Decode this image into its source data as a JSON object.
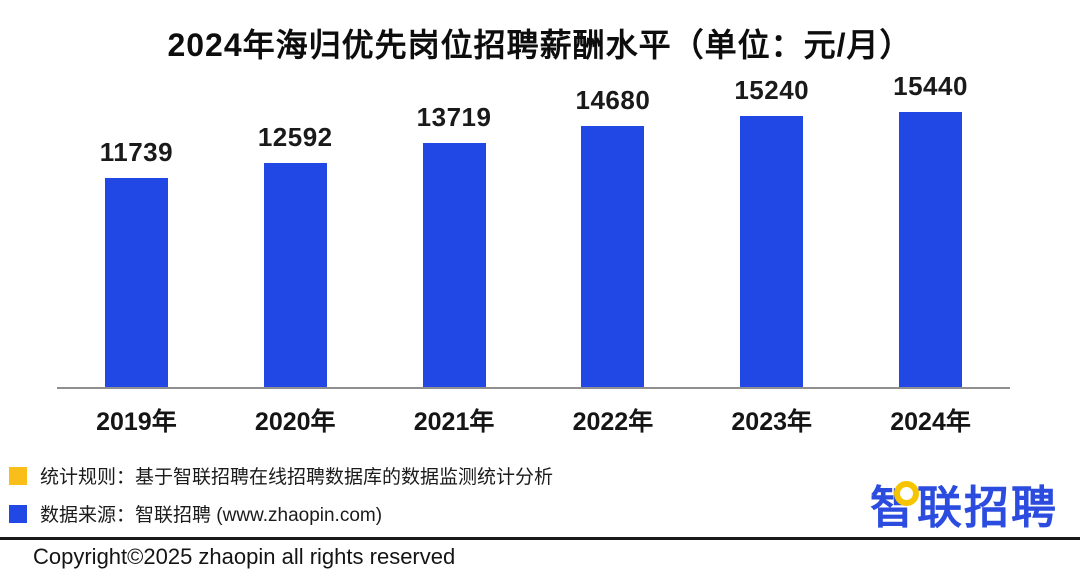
{
  "title": "2024年海归优先岗位招聘薪酬水平（单位：元/月）",
  "chart_data": {
    "type": "bar",
    "categories": [
      "2019年",
      "2020年",
      "2021年",
      "2022年",
      "2023年",
      "2024年"
    ],
    "values": [
      11739,
      12592,
      13719,
      14680,
      15240,
      15440
    ],
    "title": "2024年海归优先岗位招聘薪酬水平",
    "unit_note": "（单位：元/月）",
    "xlabel": "",
    "ylabel": "",
    "ylim": [
      0,
      16000
    ],
    "grid": false,
    "legend_position": "none",
    "bar_color": "#2148e4",
    "value_labels_shown": true
  },
  "legend": {
    "items": [
      {
        "swatch_color": "#f9be19",
        "label": "统计规则：基于智联招聘在线招聘数据库的数据监测统计分析"
      },
      {
        "swatch_color": "#2148e4",
        "label": "数据来源：智联招聘 (www.zhaopin.com)"
      }
    ]
  },
  "footer": {
    "copyright": "Copyright©2025 zhaopin all rights reserved",
    "logo_text": "智联招聘"
  },
  "colors": {
    "bar_blue": "#2148e4",
    "logo_blue": "#2b4cdf",
    "accent_yellow": "#f9be19",
    "axis_gray": "#8f8f8f",
    "divider_dark": "#1a1a1a"
  }
}
